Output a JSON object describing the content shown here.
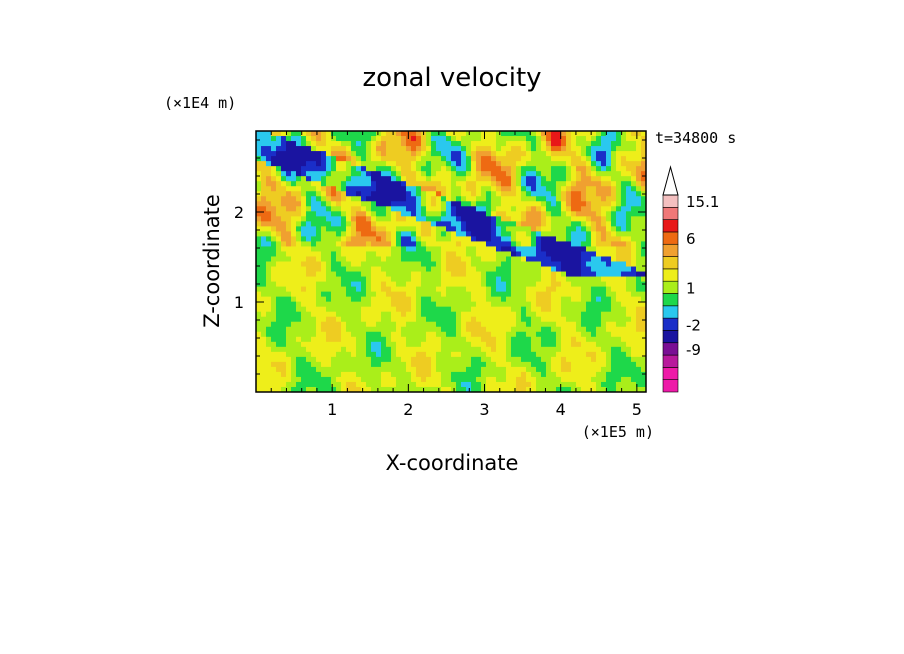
{
  "chart_data": {
    "type": "heatmap",
    "title": "zonal velocity",
    "xlabel": "X-coordinate",
    "ylabel": "Z-coordinate",
    "x_unit": "(×1E5 m)",
    "y_unit": "(×1E4 m)",
    "time_label": "t=34800 s",
    "xlim": [
      0,
      5.12
    ],
    "ylim": [
      0,
      2.9
    ],
    "x_ticks": [
      1,
      2,
      3,
      4,
      5
    ],
    "y_ticks": [
      1,
      2
    ],
    "colorbar": {
      "levels": [
        {
          "label": "",
          "color": "#ee1aa8"
        },
        {
          "label": "",
          "color": "#ee1aa8"
        },
        {
          "label": "",
          "color": "#b8199c"
        },
        {
          "label": "-9",
          "color": "#7a0f94"
        },
        {
          "label": "",
          "color": "#1a14a0"
        },
        {
          "label": "-2",
          "color": "#1a2ec8"
        },
        {
          "label": "",
          "color": "#2ac8ee"
        },
        {
          "label": "",
          "color": "#1ed84a"
        },
        {
          "label": "1",
          "color": "#aaee1a"
        },
        {
          "label": "",
          "color": "#eeee1a"
        },
        {
          "label": "",
          "color": "#eecc22"
        },
        {
          "label": "",
          "color": "#f0a030"
        },
        {
          "label": "6",
          "color": "#ee6a12"
        },
        {
          "label": "",
          "color": "#e81818"
        },
        {
          "label": "",
          "color": "#f07878"
        },
        {
          "label": "15.1",
          "color": "#f4c0c0"
        }
      ],
      "extend_top_color": "#ffffff"
    }
  }
}
